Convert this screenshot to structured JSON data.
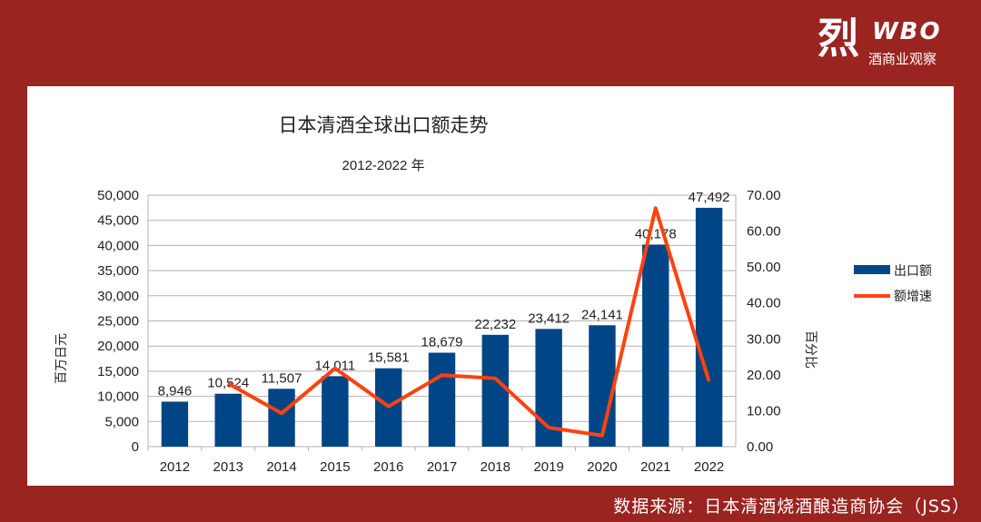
{
  "logo": {
    "char": "烈",
    "brand": "WBO",
    "subtitle": "酒商业观察"
  },
  "source": "数据来源：日本清酒烧酒酿造商协会（JSS）",
  "colors": {
    "background": "#9a2420",
    "bar": "#004586",
    "line": "#ff420e"
  },
  "chart_data": {
    "type": "bar+line",
    "title": "日本清酒全球出口额走势",
    "subtitle": "2012-2022 年",
    "ylabel": "百万日元",
    "y2label": "百分比",
    "categories": [
      "2012",
      "2013",
      "2014",
      "2015",
      "2016",
      "2017",
      "2018",
      "2019",
      "2020",
      "2021",
      "2022"
    ],
    "ylim": [
      0,
      50000
    ],
    "y2lim": [
      0,
      70
    ],
    "yticks": [
      "0",
      "5,000",
      "10,000",
      "15,000",
      "20,000",
      "25,000",
      "30,000",
      "35,000",
      "40,000",
      "45,000",
      "50,000"
    ],
    "y2ticks": [
      "0.00",
      "10.00",
      "20.00",
      "30.00",
      "40.00",
      "50.00",
      "60.00",
      "70.00"
    ],
    "grid": true,
    "legend": "right",
    "series": [
      {
        "name": "出口额",
        "type": "bar",
        "axis": "left",
        "values": [
          8946,
          10524,
          11507,
          14011,
          15581,
          18679,
          22232,
          23412,
          24141,
          40178,
          47492
        ],
        "labels": [
          "8,946",
          "10,524",
          "11,507",
          "14,011",
          "15,581",
          "18,679",
          "22,232",
          "23,412",
          "24,141",
          "40,178",
          "47,492"
        ]
      },
      {
        "name": "额增速",
        "type": "line",
        "axis": "right",
        "values": [
          null,
          17.6,
          9.3,
          21.8,
          11.2,
          19.9,
          19.0,
          5.3,
          3.1,
          66.4,
          18.2
        ]
      }
    ]
  }
}
